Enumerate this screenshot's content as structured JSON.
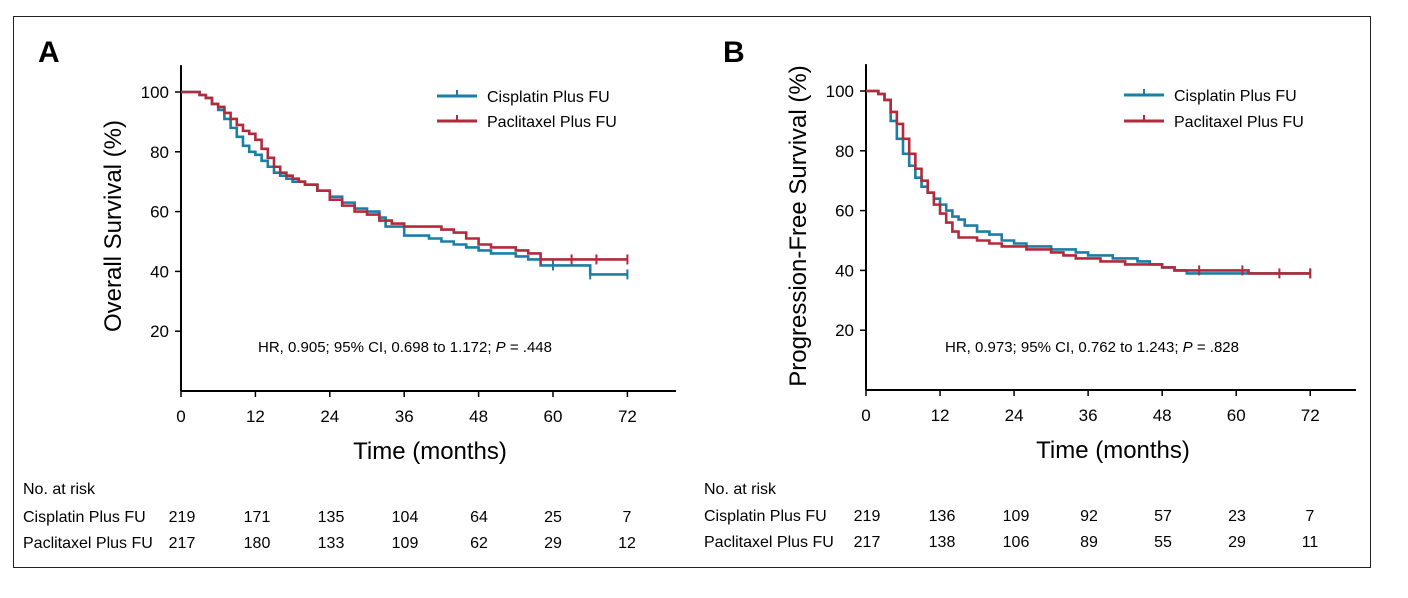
{
  "chart_data": [
    {
      "type": "line",
      "panel": "A",
      "xlabel": "Time (months)",
      "ylabel": "Overall Survival (%)",
      "xlim": [
        0,
        75
      ],
      "ylim": [
        0,
        110
      ],
      "xticks": [
        "0",
        "12",
        "24",
        "36",
        "48",
        "60",
        "72"
      ],
      "yticks": [
        "20",
        "40",
        "60",
        "80",
        "100"
      ],
      "annotation": {
        "prefix": "HR, 0.905; 95% CI, 0.698 to 1.172; ",
        "p_label": "P",
        "p_value": " = .448"
      },
      "series": [
        {
          "name": "Cisplatin Plus FU",
          "color": "#1b7fa5",
          "x": [
            0,
            2,
            3,
            4,
            5,
            6,
            7,
            8,
            9,
            10,
            11,
            12,
            13,
            14,
            15,
            16,
            17,
            18,
            19,
            20,
            22,
            24,
            26,
            28,
            30,
            32,
            33,
            36,
            38,
            40,
            42,
            44,
            46,
            48,
            50,
            52,
            54,
            56,
            58,
            60,
            62,
            64,
            66,
            68,
            70,
            72
          ],
          "y": [
            100,
            100,
            99,
            98,
            96,
            94,
            91,
            88,
            85,
            82,
            80,
            79,
            77,
            75,
            73,
            72,
            71,
            70,
            70,
            69,
            67,
            65,
            63,
            61,
            60,
            58,
            55,
            52,
            52,
            51,
            50,
            49,
            48,
            47,
            46,
            46,
            45,
            44,
            42,
            42,
            42,
            42,
            39,
            39,
            39,
            39
          ],
          "censor_x": [
            60,
            66,
            72
          ]
        },
        {
          "name": "Paclitaxel Plus FU",
          "color": "#b22a3c",
          "x": [
            0,
            2,
            3,
            4,
            5,
            6,
            7,
            8,
            9,
            10,
            11,
            12,
            13,
            14,
            15,
            16,
            17,
            18,
            19,
            20,
            22,
            24,
            26,
            28,
            30,
            32,
            34,
            36,
            38,
            40,
            42,
            44,
            46,
            48,
            50,
            52,
            54,
            56,
            58,
            60,
            62,
            64,
            66,
            68,
            70,
            72
          ],
          "y": [
            100,
            100,
            99,
            98,
            96,
            95,
            93,
            91,
            89,
            87,
            86,
            84,
            81,
            78,
            75,
            73,
            72,
            71,
            70,
            69,
            67,
            64,
            62,
            60,
            59,
            57,
            56,
            55,
            55,
            55,
            54,
            53,
            51,
            49,
            48,
            48,
            47,
            46,
            44,
            44,
            44,
            44,
            44,
            44,
            44,
            44
          ],
          "censor_x": [
            58,
            63,
            67,
            72
          ]
        }
      ],
      "risk_table": {
        "header": "No. at risk",
        "rows": [
          {
            "label": "Cisplatin Plus FU",
            "values": [
              "219",
              "171",
              "135",
              "104",
              "64",
              "25",
              "7"
            ]
          },
          {
            "label": "Paclitaxel Plus FU",
            "values": [
              "217",
              "180",
              "133",
              "109",
              "62",
              "29",
              "12"
            ]
          }
        ]
      }
    },
    {
      "type": "line",
      "panel": "B",
      "xlabel": "Time (months)",
      "ylabel": "Progression-Free Survival (%)",
      "xlim": [
        0,
        75
      ],
      "ylim": [
        0,
        110
      ],
      "xticks": [
        "0",
        "12",
        "24",
        "36",
        "48",
        "60",
        "72"
      ],
      "yticks": [
        "20",
        "40",
        "60",
        "80",
        "100"
      ],
      "annotation": {
        "prefix": "HR, 0.973; 95% CI, 0.762 to 1.243; ",
        "p_label": "P",
        "p_value": " = .828"
      },
      "series": [
        {
          "name": "Cisplatin Plus FU",
          "color": "#1b7fa5",
          "x": [
            0,
            1,
            2,
            3,
            4,
            5,
            6,
            7,
            8,
            9,
            10,
            11,
            12,
            13,
            14,
            15,
            16,
            18,
            20,
            22,
            24,
            26,
            28,
            30,
            32,
            34,
            36,
            38,
            40,
            42,
            44,
            46,
            48,
            50,
            52,
            54,
            56,
            58,
            60,
            62,
            64,
            66,
            68,
            70,
            72
          ],
          "y": [
            100,
            100,
            99,
            97,
            90,
            84,
            79,
            75,
            71,
            68,
            66,
            64,
            62,
            60,
            58,
            57,
            55,
            53,
            52,
            50,
            49,
            48,
            48,
            47,
            47,
            46,
            45,
            45,
            44,
            44,
            43,
            42,
            41,
            40,
            39,
            39,
            39,
            39,
            39,
            39,
            39,
            39,
            39,
            39,
            39
          ],
          "censor_x": [
            72
          ]
        },
        {
          "name": "Paclitaxel Plus FU",
          "color": "#b22a3c",
          "x": [
            0,
            1,
            2,
            3,
            4,
            5,
            6,
            7,
            8,
            9,
            10,
            11,
            12,
            13,
            14,
            15,
            16,
            18,
            20,
            22,
            24,
            26,
            28,
            30,
            32,
            34,
            36,
            38,
            40,
            42,
            44,
            46,
            48,
            50,
            52,
            54,
            56,
            58,
            60,
            62,
            64,
            66,
            68,
            70,
            72
          ],
          "y": [
            100,
            100,
            99,
            97,
            93,
            89,
            84,
            79,
            74,
            70,
            66,
            62,
            59,
            56,
            53,
            51,
            51,
            50,
            49,
            48,
            48,
            47,
            47,
            46,
            45,
            44,
            44,
            43,
            43,
            42,
            42,
            42,
            41,
            40,
            40,
            40,
            40,
            40,
            40,
            39,
            39,
            39,
            39,
            39,
            39
          ],
          "censor_x": [
            54,
            61,
            67,
            72
          ]
        }
      ],
      "risk_table": {
        "header": "No. at risk",
        "rows": [
          {
            "label": "Cisplatin Plus FU",
            "values": [
              "219",
              "136",
              "109",
              "92",
              "57",
              "23",
              "7"
            ]
          },
          {
            "label": "Paclitaxel Plus FU",
            "values": [
              "217",
              "138",
              "106",
              "89",
              "55",
              "29",
              "11"
            ]
          }
        ]
      }
    }
  ]
}
